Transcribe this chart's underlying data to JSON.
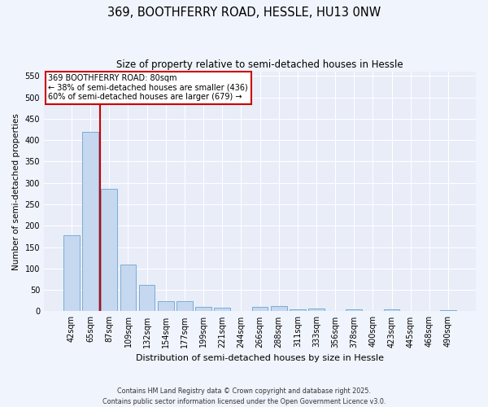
{
  "title": "369, BOOTHFERRY ROAD, HESSLE, HU13 0NW",
  "subtitle": "Size of property relative to semi-detached houses in Hessle",
  "xlabel": "Distribution of semi-detached houses by size in Hessle",
  "ylabel": "Number of semi-detached properties",
  "categories": [
    "42sqm",
    "65sqm",
    "87sqm",
    "109sqm",
    "132sqm",
    "154sqm",
    "177sqm",
    "199sqm",
    "221sqm",
    "244sqm",
    "266sqm",
    "288sqm",
    "311sqm",
    "333sqm",
    "356sqm",
    "378sqm",
    "400sqm",
    "423sqm",
    "445sqm",
    "468sqm",
    "490sqm"
  ],
  "values": [
    178,
    420,
    287,
    109,
    61,
    24,
    24,
    10,
    8,
    0,
    11,
    12,
    5,
    6,
    0,
    5,
    0,
    5,
    0,
    0,
    3
  ],
  "bar_color": "#c5d8f0",
  "bar_edge_color": "#7aadd4",
  "annotation_title": "369 BOOTHFERRY ROAD: 80sqm",
  "annotation_line1": "← 38% of semi-detached houses are smaller (436)",
  "annotation_line2": "60% of semi-detached houses are larger (679) →",
  "ylim": [
    0,
    560
  ],
  "yticks": [
    0,
    50,
    100,
    150,
    200,
    250,
    300,
    350,
    400,
    450,
    500,
    550
  ],
  "red_line_color": "#cc0000",
  "annotation_box_edge": "#cc0000",
  "background_color": "#e8edf8",
  "grid_color": "#ffffff",
  "footer_line1": "Contains HM Land Registry data © Crown copyright and database right 2025.",
  "footer_line2": "Contains public sector information licensed under the Open Government Licence v3.0."
}
